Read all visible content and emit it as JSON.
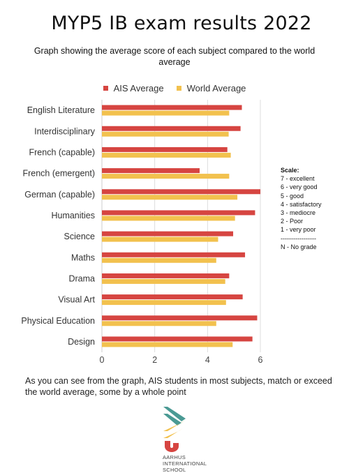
{
  "header": {
    "title": "MYP5 IB exam results 2022",
    "subtitle": "Graph showing the average score of each subject compared to the world average"
  },
  "scale": {
    "title": "Scale:",
    "items": [
      "7 - excellent",
      "6 - very good",
      "5 - good",
      "4 - satisfactory",
      "3 - mediocre",
      "2 - Poor",
      "1 - very poor",
      "-----------------",
      "N - No grade"
    ]
  },
  "footnote": "As you can see from the graph, AIS students in most subjects, match or exceed the world average, some by a whole point",
  "logo": {
    "line1": "AARHUS",
    "line2": "INTERNATIONAL",
    "line3": "SCHOOL"
  },
  "colors": {
    "ais": "#d64541",
    "world": "#f2c14e",
    "grid": "#dddddd",
    "logo_teal": "#4a9a94",
    "logo_yellow": "#f2c14e",
    "logo_red": "#d64541"
  },
  "chart_data": {
    "type": "bar",
    "orientation": "horizontal",
    "categories": [
      "English Literature",
      "Interdisciplinary",
      "French (capable)",
      "French (emergent)",
      "German (capable)",
      "Humanities",
      "Science",
      "Maths",
      "Drama",
      "Visual Art",
      "Physical Education",
      "Design"
    ],
    "series": [
      {
        "name": "AIS Average",
        "values": [
          5.3,
          5.25,
          4.75,
          3.7,
          6.0,
          5.8,
          4.97,
          5.42,
          4.82,
          5.33,
          5.88,
          5.7
        ]
      },
      {
        "name": "World Average",
        "values": [
          4.82,
          4.8,
          4.88,
          4.82,
          5.13,
          5.04,
          4.4,
          4.33,
          4.67,
          4.7,
          4.33,
          4.95
        ]
      }
    ],
    "xlim": [
      0,
      6
    ],
    "xticks": [
      0,
      2,
      4,
      6
    ],
    "grid": true,
    "legend": "top"
  }
}
